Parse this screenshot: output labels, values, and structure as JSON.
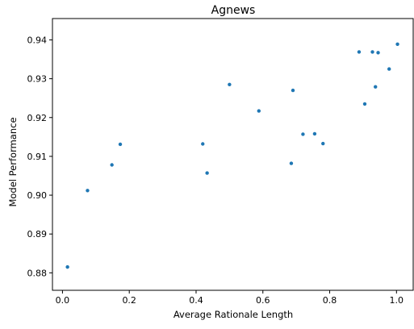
{
  "chart_data": {
    "type": "scatter",
    "title": "Agnews",
    "xlabel": "Average Rationale Length",
    "ylabel": "Model Performance",
    "xlim": [
      -0.03,
      1.05
    ],
    "ylim": [
      0.8755,
      0.9455
    ],
    "x_ticks": [
      0.0,
      0.2,
      0.4,
      0.6,
      0.8,
      1.0
    ],
    "x_tick_labels": [
      "0.0",
      "0.2",
      "0.4",
      "0.6",
      "0.8",
      "1.0"
    ],
    "y_ticks": [
      0.88,
      0.89,
      0.9,
      0.91,
      0.92,
      0.93,
      0.94
    ],
    "y_tick_labels": [
      "0.88",
      "0.89",
      "0.90",
      "0.91",
      "0.92",
      "0.93",
      "0.94"
    ],
    "grid": false,
    "legend": "none",
    "marker_color": "#1f77b4",
    "points": [
      {
        "x": 0.015,
        "y": 0.8815
      },
      {
        "x": 0.075,
        "y": 0.9012
      },
      {
        "x": 0.148,
        "y": 0.9078
      },
      {
        "x": 0.173,
        "y": 0.9131
      },
      {
        "x": 0.42,
        "y": 0.9132
      },
      {
        "x": 0.433,
        "y": 0.9057
      },
      {
        "x": 0.5,
        "y": 0.9285
      },
      {
        "x": 0.588,
        "y": 0.9217
      },
      {
        "x": 0.685,
        "y": 0.9082
      },
      {
        "x": 0.69,
        "y": 0.927
      },
      {
        "x": 0.72,
        "y": 0.9157
      },
      {
        "x": 0.755,
        "y": 0.9158
      },
      {
        "x": 0.78,
        "y": 0.9133
      },
      {
        "x": 0.888,
        "y": 0.9369
      },
      {
        "x": 0.905,
        "y": 0.9235
      },
      {
        "x": 0.928,
        "y": 0.9369
      },
      {
        "x": 0.937,
        "y": 0.9279
      },
      {
        "x": 0.945,
        "y": 0.9367
      },
      {
        "x": 0.978,
        "y": 0.9325
      },
      {
        "x": 1.003,
        "y": 0.9389
      }
    ]
  }
}
